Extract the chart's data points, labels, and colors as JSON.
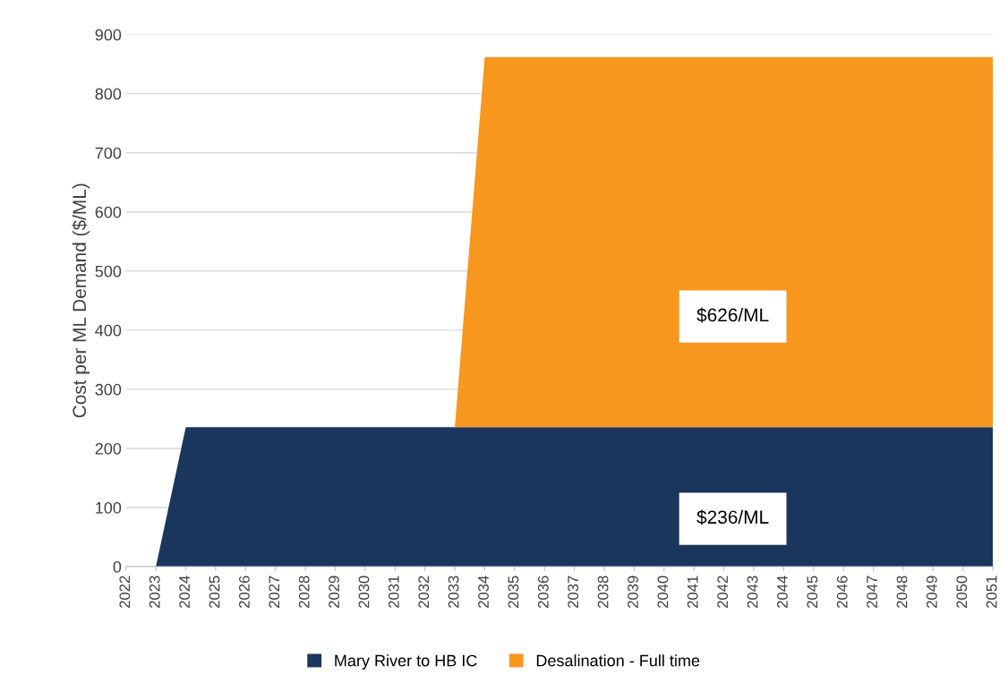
{
  "chart_data": {
    "type": "area",
    "stacked": true,
    "ylabel": "Cost per ML Demand ($/ML)",
    "categories": [
      "2022",
      "2023",
      "2024",
      "2025",
      "2026",
      "2027",
      "2028",
      "2029",
      "2030",
      "2031",
      "2032",
      "2033",
      "2034",
      "2035",
      "2036",
      "2037",
      "2038",
      "2039",
      "2040",
      "2041",
      "2042",
      "2043",
      "2044",
      "2045",
      "2046",
      "2047",
      "2048",
      "2049",
      "2050",
      "2051"
    ],
    "series": [
      {
        "name": "Mary River to HB IC",
        "color": "#1b365d",
        "values": [
          0,
          0,
          236,
          236,
          236,
          236,
          236,
          236,
          236,
          236,
          236,
          236,
          236,
          236,
          236,
          236,
          236,
          236,
          236,
          236,
          236,
          236,
          236,
          236,
          236,
          236,
          236,
          236,
          236,
          236
        ]
      },
      {
        "name": "Desalination - Full time",
        "color": "#f7971e",
        "values": [
          0,
          0,
          0,
          0,
          0,
          0,
          0,
          0,
          0,
          0,
          0,
          0,
          626,
          626,
          626,
          626,
          626,
          626,
          626,
          626,
          626,
          626,
          626,
          626,
          626,
          626,
          626,
          626,
          626,
          626
        ]
      }
    ],
    "ylim": [
      0,
      900
    ],
    "yticks": [
      0,
      100,
      200,
      300,
      400,
      500,
      600,
      700,
      800,
      900
    ],
    "grid": "y",
    "legend": "bottom",
    "annotations": [
      "$626/ML",
      "$236/ML"
    ]
  }
}
